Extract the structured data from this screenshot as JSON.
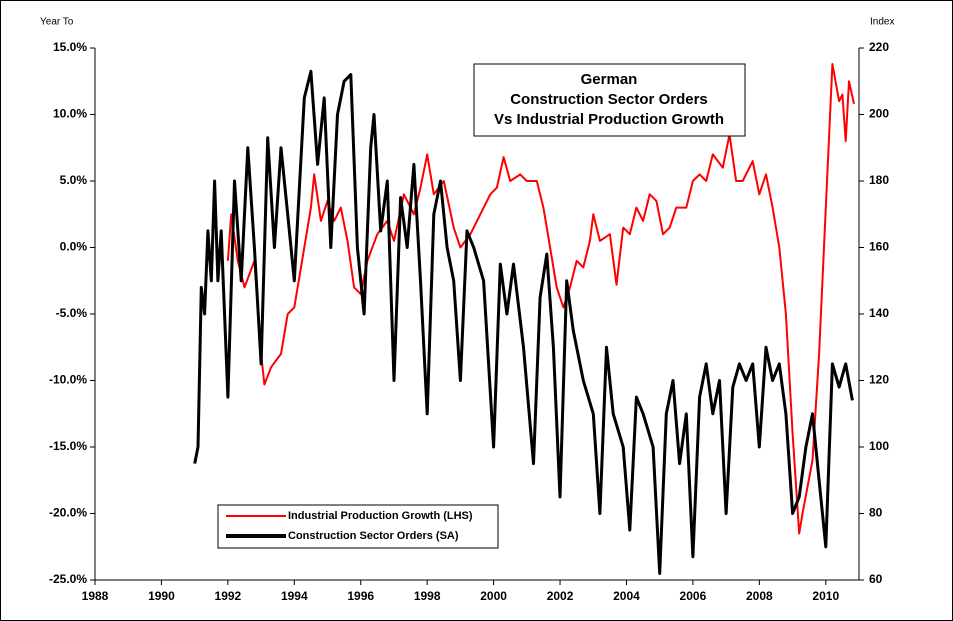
{
  "chart_data": {
    "type": "line",
    "title": [
      "German",
      "Construction Sector Orders",
      "Vs Industrial Production Growth"
    ],
    "y_label": "Year To",
    "y2_label": "Index",
    "xlim": [
      1988,
      2011
    ],
    "xticks": [
      1988,
      1990,
      1992,
      1994,
      1996,
      1998,
      2000,
      2002,
      2004,
      2006,
      2008,
      2010
    ],
    "ylim": [
      -25,
      15
    ],
    "yticks": [
      {
        "value": 15,
        "label": "15.0%"
      },
      {
        "value": 10,
        "label": "10.0%"
      },
      {
        "value": 5,
        "label": "5.0%"
      },
      {
        "value": 0,
        "label": "0.0%"
      },
      {
        "value": -5,
        "label": "-5.0%"
      },
      {
        "value": -10,
        "label": "-10.0%"
      },
      {
        "value": -15,
        "label": "-15.0%"
      },
      {
        "value": -20,
        "label": "-20.0%"
      },
      {
        "value": -25,
        "label": "-25.0%"
      }
    ],
    "y2lim": [
      60,
      220
    ],
    "y2ticks": [
      220,
      200,
      180,
      160,
      140,
      120,
      100,
      80,
      60
    ],
    "grid": false,
    "series": [
      {
        "name": "Industrial Production Growth (LHS)",
        "color": "#ff0000",
        "axis": "y",
        "x": [
          1992.0,
          1992.1,
          1992.3,
          1992.5,
          1992.8,
          1993.0,
          1993.1,
          1993.3,
          1993.6,
          1993.8,
          1994.0,
          1994.3,
          1994.5,
          1994.6,
          1994.8,
          1995.0,
          1995.2,
          1995.4,
          1995.6,
          1995.8,
          1996.0,
          1996.2,
          1996.5,
          1996.8,
          1997.0,
          1997.3,
          1997.6,
          1997.8,
          1998.0,
          1998.2,
          1998.5,
          1998.8,
          1999.0,
          1999.3,
          1999.6,
          1999.9,
          2000.1,
          2000.3,
          2000.5,
          2000.8,
          2001.0,
          2001.3,
          2001.5,
          2001.7,
          2001.9,
          2002.1,
          2002.3,
          2002.5,
          2002.7,
          2002.9,
          2003.0,
          2003.2,
          2003.5,
          2003.7,
          2003.9,
          2004.1,
          2004.3,
          2004.5,
          2004.7,
          2004.9,
          2005.1,
          2005.3,
          2005.5,
          2005.8,
          2006.0,
          2006.2,
          2006.4,
          2006.6,
          2006.9,
          2007.1,
          2007.3,
          2007.5,
          2007.8,
          2008.0,
          2008.2,
          2008.4,
          2008.6,
          2008.8,
          2009.0,
          2009.2,
          2009.3,
          2009.6,
          2009.8,
          2010.0,
          2010.2,
          2010.4,
          2010.5,
          2010.6,
          2010.7,
          2010.85
        ],
        "values": [
          -1,
          2.5,
          -1,
          -3,
          -1,
          -8,
          -10.3,
          -9,
          -8,
          -5,
          -4.5,
          0,
          3,
          5.5,
          2,
          3.5,
          2,
          3,
          0.5,
          -3,
          -3.5,
          -1,
          1,
          2,
          0.5,
          4,
          2.5,
          4.5,
          7,
          4,
          5,
          1.5,
          0,
          1,
          2.5,
          4,
          4.5,
          6.8,
          5,
          5.5,
          5,
          5,
          3,
          0,
          -3,
          -4.5,
          -3,
          -1,
          -1.5,
          0.5,
          2.5,
          0.5,
          1,
          -2.8,
          1.5,
          1,
          3,
          2,
          4,
          3.5,
          1,
          1.5,
          3,
          3,
          5,
          5.5,
          5,
          7,
          6,
          8.5,
          5,
          5,
          6.5,
          4,
          5.5,
          3,
          0,
          -5,
          -14,
          -21.5,
          -20,
          -16,
          -8,
          3,
          13.8,
          11,
          11.5,
          8,
          12.5,
          10.8
        ]
      },
      {
        "name": "Construction Sector Orders (SA)",
        "color": "#000000",
        "axis": "y2",
        "x": [
          1991.0,
          1991.1,
          1991.2,
          1991.3,
          1991.4,
          1991.5,
          1991.6,
          1991.7,
          1991.8,
          1992.0,
          1992.2,
          1992.4,
          1992.6,
          1992.8,
          1993.0,
          1993.2,
          1993.4,
          1993.6,
          1993.8,
          1994.0,
          1994.3,
          1994.5,
          1994.7,
          1994.9,
          1995.1,
          1995.3,
          1995.5,
          1995.7,
          1995.9,
          1996.1,
          1996.3,
          1996.4,
          1996.6,
          1996.8,
          1997.0,
          1997.2,
          1997.4,
          1997.6,
          1997.8,
          1998.0,
          1998.2,
          1998.4,
          1998.6,
          1998.8,
          1999.0,
          1999.2,
          1999.4,
          1999.7,
          2000.0,
          2000.2,
          2000.4,
          2000.6,
          2000.9,
          2001.2,
          2001.4,
          2001.6,
          2001.8,
          2002.0,
          2002.2,
          2002.4,
          2002.7,
          2003.0,
          2003.2,
          2003.4,
          2003.6,
          2003.9,
          2004.1,
          2004.3,
          2004.5,
          2004.8,
          2005.0,
          2005.2,
          2005.4,
          2005.6,
          2005.8,
          2006.0,
          2006.2,
          2006.4,
          2006.6,
          2006.8,
          2007.0,
          2007.2,
          2007.4,
          2007.6,
          2007.8,
          2008.0,
          2008.2,
          2008.4,
          2008.6,
          2008.8,
          2009.0,
          2009.2,
          2009.4,
          2009.6,
          2009.8,
          2010.0,
          2010.2,
          2010.4,
          2010.6,
          2010.8
        ],
        "values": [
          95,
          100,
          148,
          140,
          165,
          150,
          180,
          150,
          165,
          115,
          180,
          150,
          190,
          160,
          125,
          193,
          160,
          190,
          170,
          150,
          205,
          213,
          185,
          205,
          160,
          200,
          210,
          212,
          160,
          140,
          190,
          200,
          165,
          180,
          120,
          175,
          160,
          185,
          150,
          110,
          170,
          180,
          160,
          150,
          120,
          165,
          160,
          150,
          100,
          155,
          140,
          155,
          130,
          95,
          145,
          158,
          130,
          85,
          150,
          135,
          120,
          110,
          80,
          130,
          110,
          100,
          75,
          115,
          110,
          100,
          62,
          110,
          120,
          95,
          110,
          67,
          115,
          125,
          110,
          120,
          80,
          118,
          125,
          120,
          125,
          100,
          130,
          120,
          125,
          110,
          80,
          85,
          100,
          110,
          90,
          70,
          125,
          118,
          125,
          114
        ]
      }
    ]
  }
}
